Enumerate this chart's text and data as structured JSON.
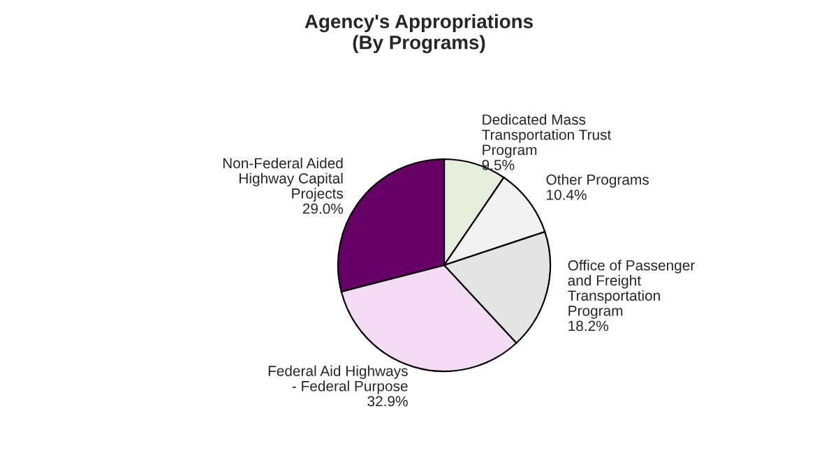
{
  "chart_data": {
    "type": "pie",
    "title": "Agency's Appropriations\n(By Programs)",
    "categories": [
      "Dedicated Mass\nTransportation Trust\nProgram",
      "Other Programs",
      "Office of Passenger\nand Freight\nTransportation\nProgram",
      "Federal Aid Highways\n- Federal Purpose",
      "Non-Federal Aided\nHighway Capital\nProjects"
    ],
    "values": [
      9.5,
      10.4,
      18.2,
      32.9,
      29.0
    ],
    "value_labels": [
      "9.5%",
      "10.4%",
      "18.2%",
      "32.9%",
      "29.0%"
    ],
    "colors": [
      "#e6efdc",
      "#f2f2f2",
      "#e4e4e4",
      "#f4dcf4",
      "#660066"
    ]
  }
}
